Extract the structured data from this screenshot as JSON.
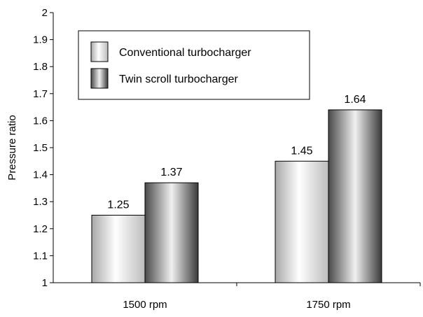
{
  "chart_data": {
    "type": "bar",
    "ylabel": "Pressure ratio",
    "ylim": [
      1,
      2
    ],
    "yticks": [
      1,
      1.1,
      1.2,
      1.3,
      1.4,
      1.5,
      1.6,
      1.7,
      1.8,
      1.9,
      2
    ],
    "ytick_labels": [
      "1",
      "1.1",
      "1.2",
      "1.3",
      "1.4",
      "1.5",
      "1.6",
      "1.7",
      "1.8",
      "1.9",
      "2"
    ],
    "categories": [
      "1500 rpm",
      "1750 rpm"
    ],
    "series": [
      {
        "name": "Conventional turbocharger",
        "values": [
          1.25,
          1.45
        ],
        "labels": [
          "1.25",
          "1.45"
        ],
        "style": "light-gradient"
      },
      {
        "name": "Twin scroll turbocharger",
        "values": [
          1.37,
          1.64
        ],
        "labels": [
          "1.37",
          "1.64"
        ],
        "style": "dark-gradient"
      }
    ],
    "legend_position": "top-left",
    "grid": false
  }
}
